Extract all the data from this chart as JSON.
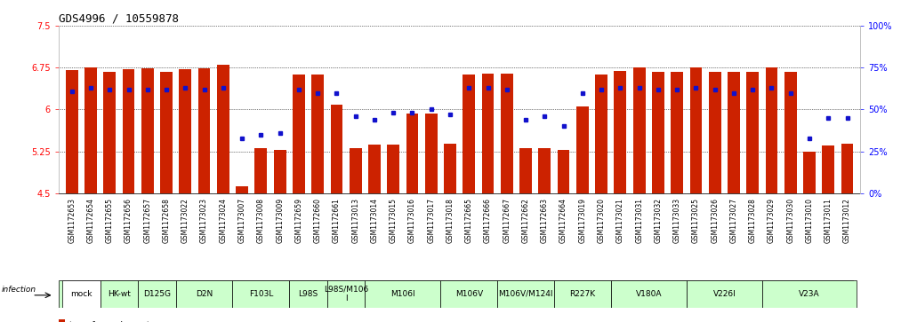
{
  "title": "GDS4996 / 10559878",
  "samples": [
    "GSM1172653",
    "GSM1172654",
    "GSM1172655",
    "GSM1172656",
    "GSM1172657",
    "GSM1172658",
    "GSM1173022",
    "GSM1173023",
    "GSM1173024",
    "GSM1173007",
    "GSM1173008",
    "GSM1173009",
    "GSM1172659",
    "GSM1172660",
    "GSM1172661",
    "GSM1173013",
    "GSM1173014",
    "GSM1173015",
    "GSM1173016",
    "GSM1173017",
    "GSM1173018",
    "GSM1172665",
    "GSM1172666",
    "GSM1172667",
    "GSM1172662",
    "GSM1172663",
    "GSM1172664",
    "GSM1173019",
    "GSM1173020",
    "GSM1173021",
    "GSM1173031",
    "GSM1173032",
    "GSM1173033",
    "GSM1173025",
    "GSM1173026",
    "GSM1173027",
    "GSM1173028",
    "GSM1173029",
    "GSM1173030",
    "GSM1173010",
    "GSM1173011",
    "GSM1173012"
  ],
  "bar_values": [
    6.7,
    6.75,
    6.68,
    6.72,
    6.74,
    6.68,
    6.72,
    6.74,
    6.8,
    4.62,
    5.3,
    5.28,
    6.63,
    6.62,
    6.08,
    5.3,
    5.37,
    5.37,
    5.92,
    5.93,
    5.38,
    6.63,
    6.64,
    6.65,
    5.3,
    5.3,
    5.28,
    6.05,
    6.63,
    6.69,
    6.76,
    6.68,
    6.68,
    6.75,
    6.68,
    6.67,
    6.68,
    6.76,
    6.68,
    5.25,
    5.35,
    5.38
  ],
  "percentile_values": [
    61,
    63,
    62,
    62,
    62,
    62,
    63,
    62,
    63,
    33,
    35,
    36,
    62,
    60,
    60,
    46,
    44,
    48,
    48,
    50,
    47,
    63,
    63,
    62,
    44,
    46,
    40,
    60,
    62,
    63,
    63,
    62,
    62,
    63,
    62,
    60,
    62,
    63,
    60,
    33,
    45,
    45
  ],
  "groups": [
    {
      "label": "mock",
      "start": 0,
      "end": 2,
      "color": "#ffffff"
    },
    {
      "label": "HK-wt",
      "start": 2,
      "end": 4,
      "color": "#ccffcc"
    },
    {
      "label": "D125G",
      "start": 4,
      "end": 6,
      "color": "#ccffcc"
    },
    {
      "label": "D2N",
      "start": 6,
      "end": 9,
      "color": "#ccffcc"
    },
    {
      "label": "F103L",
      "start": 9,
      "end": 12,
      "color": "#ccffcc"
    },
    {
      "label": "L98S",
      "start": 12,
      "end": 14,
      "color": "#ccffcc"
    },
    {
      "label": "L98S/M106\nI",
      "start": 14,
      "end": 16,
      "color": "#ccffcc"
    },
    {
      "label": "M106I",
      "start": 16,
      "end": 20,
      "color": "#ccffcc"
    },
    {
      "label": "M106V",
      "start": 20,
      "end": 23,
      "color": "#ccffcc"
    },
    {
      "label": "M106V/M124I",
      "start": 23,
      "end": 26,
      "color": "#ccffcc"
    },
    {
      "label": "R227K",
      "start": 26,
      "end": 29,
      "color": "#ccffcc"
    },
    {
      "label": "V180A",
      "start": 29,
      "end": 33,
      "color": "#ccffcc"
    },
    {
      "label": "V226I",
      "start": 33,
      "end": 37,
      "color": "#ccffcc"
    },
    {
      "label": "V23A",
      "start": 37,
      "end": 42,
      "color": "#ccffcc"
    }
  ],
  "y_min": 4.5,
  "y_max": 7.5,
  "y_ticks": [
    4.5,
    5.25,
    6.0,
    6.75,
    7.5
  ],
  "y_tick_labels": [
    "4.5",
    "5.25",
    "6",
    "6.75",
    "7.5"
  ],
  "right_ticks": [
    0,
    25,
    50,
    75,
    100
  ],
  "right_tick_labels": [
    "0%",
    "25%",
    "50%",
    "75%",
    "100%"
  ],
  "bar_color": "#cc2200",
  "dot_color": "#1111cc",
  "title_fontsize": 9,
  "sample_fontsize": 5.5,
  "group_fontsize": 6.5,
  "legend_fontsize": 7,
  "ytick_fontsize": 7
}
